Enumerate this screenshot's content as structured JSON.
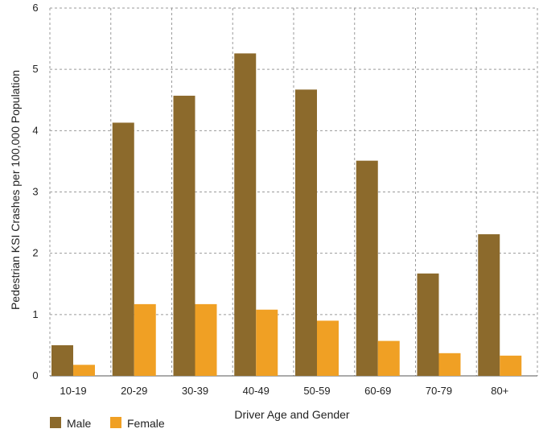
{
  "chart_data": {
    "type": "bar",
    "categories": [
      "10-19",
      "20-29",
      "30-39",
      "40-49",
      "50-59",
      "60-69",
      "70-79",
      "80+"
    ],
    "series": [
      {
        "name": "Male",
        "color": "#8c6a2c",
        "values": [
          0.5,
          4.13,
          4.57,
          5.26,
          4.67,
          3.51,
          1.67,
          2.31
        ]
      },
      {
        "name": "Female",
        "color": "#f0a024",
        "values": [
          0.18,
          1.17,
          1.17,
          1.08,
          0.9,
          0.57,
          0.37,
          0.33
        ]
      }
    ],
    "xlabel": "Driver Age and Gender",
    "ylabel": "Pedestrian KSI Crashes per 100,000 Population",
    "ylim": [
      0,
      6
    ],
    "yticks": [
      0,
      1,
      2,
      3,
      4,
      5,
      6
    ],
    "grid": true,
    "grid_style": "dashed",
    "legend_position": "bottom-left"
  }
}
